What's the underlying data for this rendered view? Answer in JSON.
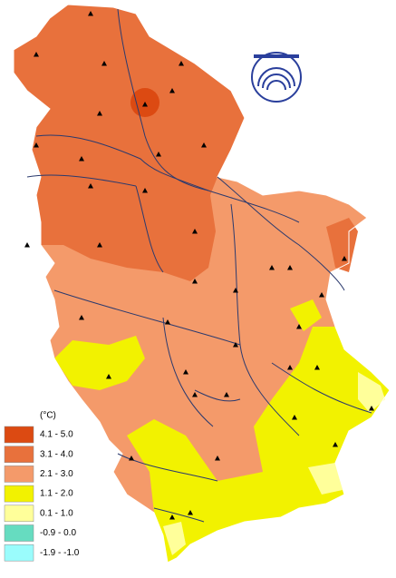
{
  "legend": {
    "title": "(°C)",
    "classes": [
      {
        "label": "4.1 - 5.0",
        "color": "#dc4a12"
      },
      {
        "label": "3.1 - 4.0",
        "color": "#e8713c"
      },
      {
        "label": "2.1 - 3.0",
        "color": "#f49a6a"
      },
      {
        "label": "1.1 - 2.0",
        "color": "#f2f200"
      },
      {
        "label": "0.1 - 1.0",
        "color": "#ffff9a"
      },
      {
        "label": "-0.9 - 0.0",
        "color": "#66dcc0"
      },
      {
        "label": "-1.9 - -1.0",
        "color": "#9afcfc"
      }
    ]
  }
}
